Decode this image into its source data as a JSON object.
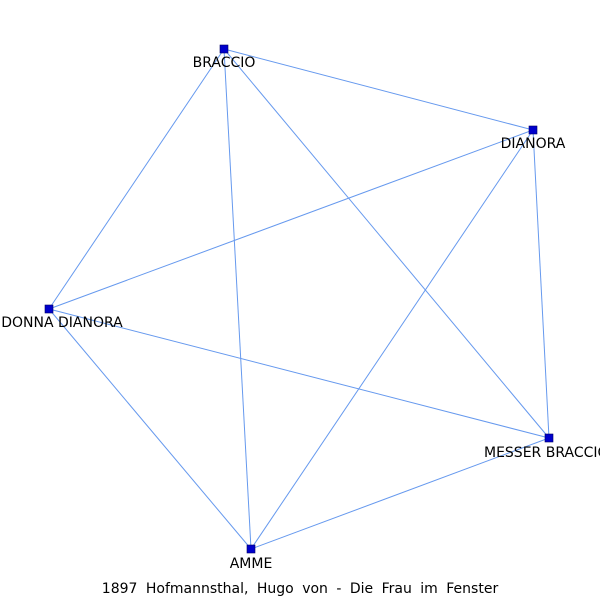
{
  "caption": "1897 Hofmannsthal, Hugo von - Die Frau im Fenster",
  "colors": {
    "edge": "#6699ee",
    "node": "#0000cc",
    "label": "#000000"
  },
  "nodes": [
    {
      "id": "braccio",
      "label": "BRACCIO"
    },
    {
      "id": "dianora",
      "label": "DIANORA"
    },
    {
      "id": "donna_dianora",
      "label": "DONNA DIANORA"
    },
    {
      "id": "messer_braccio",
      "label": "MESSER BRACCIO"
    },
    {
      "id": "amme",
      "label": "AMME"
    }
  ],
  "edges": [
    [
      "braccio",
      "dianora"
    ],
    [
      "braccio",
      "donna_dianora"
    ],
    [
      "braccio",
      "amme"
    ],
    [
      "braccio",
      "messer_braccio"
    ],
    [
      "dianora",
      "donna_dianora"
    ],
    [
      "dianora",
      "amme"
    ],
    [
      "dianora",
      "messer_braccio"
    ],
    [
      "donna_dianora",
      "messer_braccio"
    ],
    [
      "donna_dianora",
      "amme"
    ],
    [
      "messer_braccio",
      "amme"
    ]
  ]
}
